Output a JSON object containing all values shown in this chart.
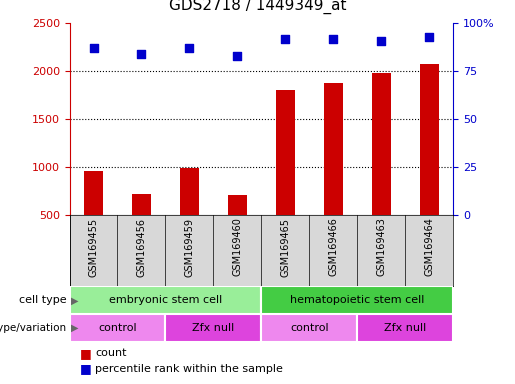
{
  "title": "GDS2718 / 1449349_at",
  "samples": [
    "GSM169455",
    "GSM169456",
    "GSM169459",
    "GSM169460",
    "GSM169465",
    "GSM169466",
    "GSM169463",
    "GSM169464"
  ],
  "counts": [
    960,
    720,
    990,
    710,
    1810,
    1880,
    1980,
    2080
  ],
  "percentile_ranks": [
    87,
    84,
    87,
    83,
    92,
    92,
    91,
    93
  ],
  "ylim_left": [
    500,
    2500
  ],
  "ylim_right": [
    0,
    100
  ],
  "yticks_left": [
    500,
    1000,
    1500,
    2000,
    2500
  ],
  "yticks_right": [
    0,
    25,
    50,
    75,
    100
  ],
  "bar_color": "#cc0000",
  "dot_color": "#0000cc",
  "cell_type_groups": [
    {
      "label": "embryonic stem cell",
      "start": 0,
      "end": 4,
      "color": "#99ee99"
    },
    {
      "label": "hematopoietic stem cell",
      "start": 4,
      "end": 8,
      "color": "#44cc44"
    }
  ],
  "genotype_groups": [
    {
      "label": "control",
      "start": 0,
      "end": 2,
      "color": "#ee88ee"
    },
    {
      "label": "Zfx null",
      "start": 2,
      "end": 4,
      "color": "#dd44dd"
    },
    {
      "label": "control",
      "start": 4,
      "end": 6,
      "color": "#ee88ee"
    },
    {
      "label": "Zfx null",
      "start": 6,
      "end": 8,
      "color": "#dd44dd"
    }
  ],
  "legend_count_color": "#cc0000",
  "legend_pct_color": "#0000cc",
  "left_axis_color": "#cc0000",
  "right_axis_color": "#0000cc",
  "grid_color": "#000000",
  "grid_lines": [
    1000,
    1500,
    2000
  ],
  "bar_width": 0.4,
  "dot_size": 30
}
